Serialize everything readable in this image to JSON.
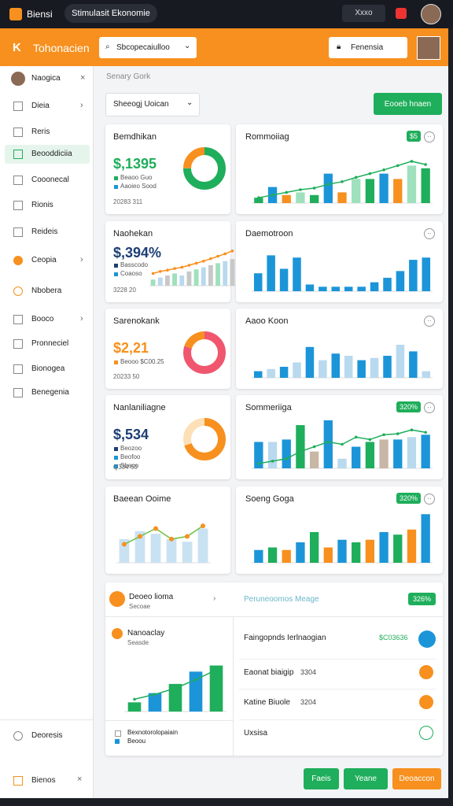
{
  "topbar": {
    "brand": "Biensi",
    "tab": "Stimulasit Ekonomie",
    "button": "Xxxo"
  },
  "header": {
    "title": "Tohonacien",
    "search": "Sbcopecaiulloo",
    "account": "Fenensia"
  },
  "sidebar": {
    "items": [
      "Naogica",
      "Dieia",
      "Reris",
      "Beooddiciia",
      "Cooonecal",
      "Rionis",
      "Reideis",
      "Ceopia",
      "Nbobera",
      "Booco",
      "Pronneciel",
      "Bionogea",
      "Benegenia"
    ],
    "footer": [
      "Deoresis",
      "Bienos"
    ]
  },
  "main": {
    "breadcrumb": "Senary Gork",
    "filter": "Sheeogj Uoican",
    "action": "Eooeb hnaen"
  },
  "cards": [
    {
      "title": "Bemdhikan",
      "value": "$,1395",
      "color": "#1fae5b",
      "legend": [
        "Beaoo Guo",
        "Aaoieo Sood"
      ],
      "footer": "20283 311",
      "donut": [
        75,
        25
      ],
      "colors": [
        "#1fae5b",
        "#f7901e"
      ]
    },
    {
      "title": "Naohekan",
      "value": "$,394%",
      "color": "#1d3f73",
      "legend": [
        "Basscodo",
        "Coaoso"
      ],
      "footer": "3228 20",
      "chart": {
        "ylim": [
          0,
          100
        ],
        "bars": [
          15,
          20,
          25,
          30,
          25,
          35,
          40,
          45,
          50,
          55,
          60,
          65
        ],
        "colors": [
          "#9fe0bd",
          "#b9d9ee",
          "#c8c8c8"
        ],
        "line": [
          30,
          35,
          38,
          42,
          45,
          50,
          55,
          60,
          66,
          72,
          78,
          85
        ],
        "line_color": "#f7901e"
      }
    },
    {
      "title": "Sarenokank",
      "value": "$2,21",
      "color": "#f7901e",
      "legend": [
        "Beooo $C00.25"
      ],
      "footer": "20233 50",
      "donut": [
        80,
        20
      ],
      "colors": [
        "#f0566e",
        "#f7901e"
      ]
    },
    {
      "title": "Nanlaniliagne",
      "value": "$,534",
      "color": "#1d3f73",
      "legend": [
        "Beozoo",
        "Beofoo",
        "Sbeoo"
      ],
      "footer": "Q334 60",
      "donut": [
        70,
        30
      ],
      "colors": [
        "#f7901e",
        "#fde0b8"
      ]
    },
    {
      "title": "Baeean Ooime",
      "chart": {
        "ylim": [
          0,
          100
        ],
        "bars": [
          45,
          60,
          55,
          45,
          40,
          65
        ],
        "colors": [
          "#c9e2f2"
        ],
        "line": [
          35,
          50,
          65,
          45,
          50,
          70
        ],
        "line_color": "#6bbf3a",
        "dot_color": "#f7901e"
      }
    }
  ],
  "panels": [
    {
      "title": "Rommoiiag",
      "badge": "$5",
      "chart": {
        "ylim": [
          0,
          100
        ],
        "bars": [
          10,
          30,
          15,
          20,
          15,
          55,
          20,
          45,
          45,
          55,
          45,
          70,
          65
        ],
        "colors": [
          "#1fae5b",
          "#1b95d8",
          "#f7901e",
          "#9fe0bd"
        ],
        "line": [
          10,
          15,
          20,
          25,
          28,
          35,
          40,
          48,
          55,
          62,
          70,
          78,
          72
        ],
        "line_color": "#1fae5b"
      }
    },
    {
      "title": "Daemotroon",
      "chart": {
        "ylim": [
          0,
          100
        ],
        "bars": [
          40,
          80,
          50,
          75,
          15,
          10,
          10,
          10,
          10,
          20,
          30,
          45,
          70,
          75
        ],
        "colors": [
          "#1b95d8"
        ]
      }
    },
    {
      "title": "Aaoo Koon",
      "chart": {
        "ylim": [
          0,
          100
        ],
        "bars": [
          15,
          20,
          25,
          35,
          70,
          40,
          55,
          50,
          40,
          45,
          50,
          75,
          60,
          15
        ],
        "colors": [
          "#1b95d8",
          "#b9d9ee"
        ]
      }
    },
    {
      "title": "Sommeriiga",
      "badge": "320%",
      "chart": {
        "ylim": [
          0,
          100
        ],
        "bars": [
          55,
          55,
          60,
          90,
          35,
          100,
          20,
          45,
          55,
          60,
          60,
          65,
          70
        ],
        "colors": [
          "#1b95d8",
          "#b9d9ee",
          "#1b95d8",
          "#1fae5b",
          "#c8b7a6"
        ],
        "line": [
          10,
          15,
          20,
          35,
          45,
          55,
          50,
          65,
          60,
          70,
          72,
          80,
          75
        ],
        "line_color": "#1fae5b"
      }
    },
    {
      "title": "Soeng Goga",
      "badge": "320%",
      "chart": {
        "ylim": [
          0,
          100
        ],
        "bars": [
          25,
          30,
          25,
          40,
          60,
          30,
          45,
          40,
          45,
          60,
          55,
          65,
          95
        ],
        "colors": [
          "#1b95d8",
          "#1fae5b",
          "#f7901e"
        ]
      }
    }
  ],
  "summary": {
    "title": "Deoeo lioma",
    "subtitle": "Secoae",
    "link": "Peruneoomos Meage",
    "badge": "326%",
    "chart_title": "Nanoaclay",
    "chart_subtitle": "Seasde",
    "chart": {
      "ylim": [
        0,
        100
      ],
      "bars": [
        15,
        30,
        45,
        65,
        75
      ],
      "colors": [
        "#1fae5b",
        "#1b95d8"
      ],
      "line": [
        20,
        28,
        38,
        52,
        68
      ],
      "line_color": "#1fae5b"
    },
    "legend": [
      "Bexnotorolopaiain",
      "Beoou"
    ],
    "rows": [
      {
        "label": "Faingopnds Ierlnaogian",
        "value": "$C03636"
      },
      {
        "label": "Eaonat biaigip",
        "value": "3304"
      },
      {
        "label": "Katine Biuole",
        "value": "3204"
      },
      {
        "label": "Uxsisa"
      }
    ]
  },
  "actions": [
    "Faeis",
    "Yeane",
    "Deoaccon"
  ]
}
